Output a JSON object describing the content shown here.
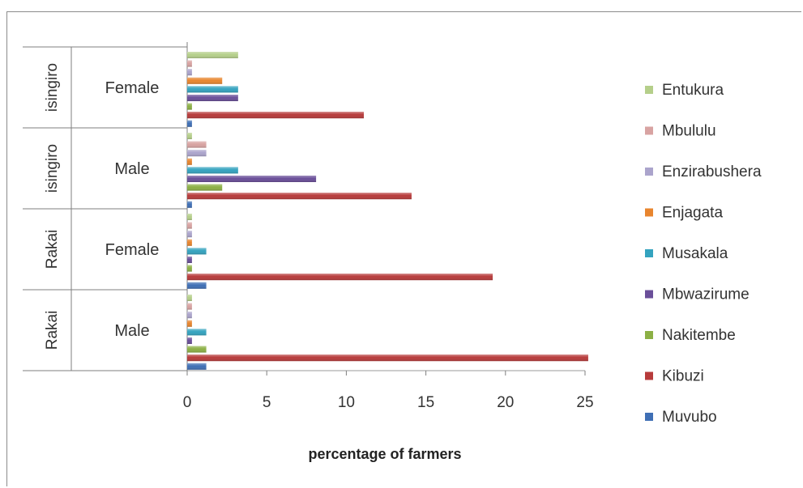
{
  "chart_data": {
    "type": "bar",
    "orientation": "horizontal",
    "title": "",
    "xlabel": "percentage of farmers",
    "ylabel": "",
    "xlim": [
      0,
      25
    ],
    "x_ticks": [
      "0",
      "5",
      "10",
      "15",
      "20",
      "25"
    ],
    "grid": false,
    "legend_position": "right",
    "categories": [
      {
        "district": "isingiro",
        "gender": "Female"
      },
      {
        "district": "isingiro",
        "gender": "Male"
      },
      {
        "district": "Rakai",
        "gender": "Female"
      },
      {
        "district": "Rakai",
        "gender": "Male"
      }
    ],
    "series": [
      {
        "name": "Entukura",
        "color": "#b5cf8a",
        "values": [
          3.2,
          0.3,
          0.3,
          0.3
        ]
      },
      {
        "name": "Mbululu",
        "color": "#d8a3a2",
        "values": [
          0.3,
          1.2,
          0.3,
          0.3
        ]
      },
      {
        "name": "Enzirabushera",
        "color": "#aba4cc",
        "values": [
          0.3,
          1.2,
          0.3,
          0.3
        ]
      },
      {
        "name": "Enjagata",
        "color": "#e8852e",
        "values": [
          2.2,
          0.3,
          0.3,
          0.3
        ]
      },
      {
        "name": "Musakala",
        "color": "#34a3bf",
        "values": [
          3.2,
          3.2,
          1.2,
          1.2
        ]
      },
      {
        "name": "Mbwazirume",
        "color": "#6a4f99",
        "values": [
          3.2,
          8.1,
          0.3,
          0.3
        ]
      },
      {
        "name": "Nakitembe",
        "color": "#8cb045",
        "values": [
          0.3,
          2.2,
          0.3,
          1.2
        ]
      },
      {
        "name": "Kibuzi",
        "color": "#b73b3b",
        "values": [
          11.1,
          14.1,
          19.2,
          25.2
        ]
      },
      {
        "name": "Muvubo",
        "color": "#3f6fb5",
        "values": [
          0.3,
          0.3,
          1.2,
          1.2
        ]
      }
    ]
  }
}
